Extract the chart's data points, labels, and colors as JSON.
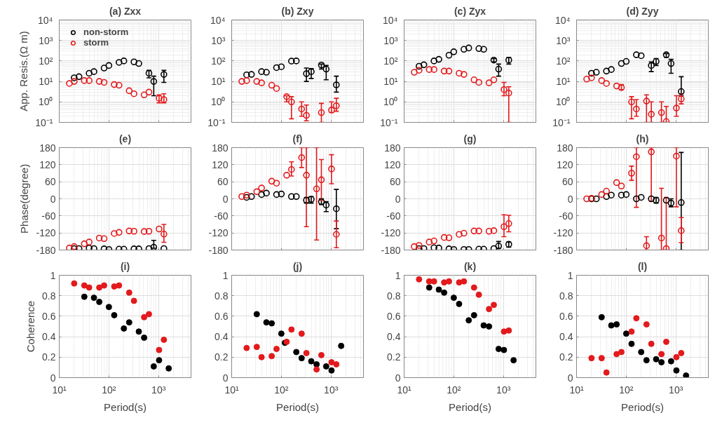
{
  "chart_data": [
    {
      "type": "scatter",
      "title": "(a) Zxx",
      "ylabel": "App. Resis.(Ω m)",
      "log": "xy",
      "grid": true,
      "marker": "circle",
      "legend": "top left",
      "tick_labels": "y",
      "xlim": [
        10,
        4500
      ],
      "ylim": [
        0.1,
        10000
      ],
      "xticks": [
        10,
        100,
        1000
      ],
      "yticks": [
        {
          "value": 0.1,
          "label": "10⁻¹"
        },
        {
          "value": 1,
          "label": "10⁰"
        },
        {
          "value": 10,
          "label": "10¹"
        },
        {
          "value": 100,
          "label": "10²"
        },
        {
          "value": 1000,
          "label": "10³"
        },
        {
          "value": 10000,
          "label": "10⁴"
        }
      ],
      "series": [
        {
          "name": "non-storm",
          "color": "#000000",
          "x": [
            20,
            25,
            40,
            50,
            80,
            100,
            160,
            200,
            320,
            400,
            640,
            800,
            1280
          ],
          "values": [
            15,
            17,
            25,
            30,
            45,
            60,
            85,
            100,
            90,
            75,
            25,
            10,
            22
          ],
          "errors": [
            null,
            null,
            null,
            null,
            null,
            null,
            null,
            null,
            null,
            null,
            [
              15,
              35
            ],
            [
              2,
              18
            ],
            [
              9,
              35
            ]
          ]
        },
        {
          "name": "storm",
          "color": "#e31a1c",
          "x": [
            16,
            20,
            32,
            40,
            64,
            80,
            128,
            160,
            256,
            320,
            512,
            640,
            1024,
            1280
          ],
          "values": [
            8,
            10,
            11,
            11,
            10,
            9,
            7,
            6.5,
            3.5,
            2.5,
            2.2,
            3,
            1.5,
            1.3
          ],
          "errors": [
            null,
            null,
            null,
            null,
            null,
            null,
            null,
            null,
            null,
            null,
            null,
            null,
            [
              0.9,
              2.2
            ],
            [
              0.9,
              2.5
            ]
          ]
        }
      ]
    },
    {
      "type": "scatter",
      "title": "(b) Zxy",
      "log": "xy",
      "grid": true,
      "marker": "circle",
      "tick_labels": "y",
      "xlim": [
        10,
        4500
      ],
      "ylim": [
        0.1,
        10000
      ],
      "xticks": [
        10,
        100,
        1000
      ],
      "yticks": [
        {
          "value": 0.1,
          "label": "10⁻¹"
        },
        {
          "value": 1,
          "label": "10⁰"
        },
        {
          "value": 10,
          "label": "10¹"
        },
        {
          "value": 100,
          "label": "10²"
        },
        {
          "value": 1000,
          "label": "10³"
        },
        {
          "value": 10000,
          "label": "10⁴"
        }
      ],
      "series": [
        {
          "color": "#000000",
          "x": [
            20,
            25,
            40,
            50,
            80,
            100,
            160,
            200,
            320,
            400,
            640,
            800,
            1280
          ],
          "values": [
            21,
            22,
            30,
            28,
            47,
            52,
            98,
            100,
            24,
            30,
            63,
            40,
            6.8
          ],
          "errors": [
            null,
            null,
            null,
            null,
            null,
            null,
            null,
            null,
            [
              10,
              45
            ],
            [
              14,
              42
            ],
            [
              40,
              70
            ],
            [
              12,
              60
            ],
            [
              3,
              18
            ]
          ]
        },
        {
          "color": "#e31a1c",
          "x": [
            16,
            20,
            32,
            40,
            64,
            80,
            128,
            160,
            256,
            320,
            640,
            1024,
            1280
          ],
          "values": [
            10,
            11,
            10,
            8.5,
            6.5,
            4.5,
            1.8,
            1.0,
            0.45,
            0.22,
            0.3,
            0.4,
            0.65
          ],
          "errors": [
            null,
            null,
            null,
            null,
            null,
            null,
            [
              1.0,
              2.0
            ],
            [
              0.15,
              1.8
            ],
            [
              0.2,
              1.0
            ],
            [
              0.12,
              0.7
            ],
            [
              0.1,
              0.85
            ],
            [
              0.3,
              1.0
            ],
            [
              0.35,
              1.5
            ]
          ]
        }
      ]
    },
    {
      "type": "scatter",
      "title": "(c) Zyx",
      "log": "xy",
      "grid": true,
      "marker": "circle",
      "tick_labels": "y",
      "xlim": [
        10,
        4500
      ],
      "ylim": [
        0.1,
        10000
      ],
      "xticks": [
        10,
        100,
        1000
      ],
      "yticks": [
        {
          "value": 0.1,
          "label": "10⁻¹"
        },
        {
          "value": 1,
          "label": "10⁰"
        },
        {
          "value": 10,
          "label": "10¹"
        },
        {
          "value": 100,
          "label": "10²"
        },
        {
          "value": 1000,
          "label": "10³"
        },
        {
          "value": 10000,
          "label": "10⁴"
        }
      ],
      "series": [
        {
          "color": "#000000",
          "x": [
            20,
            25,
            40,
            50,
            80,
            100,
            160,
            200,
            320,
            400,
            640,
            800,
            1280
          ],
          "values": [
            55,
            65,
            100,
            120,
            190,
            280,
            370,
            430,
            400,
            370,
            110,
            40,
            110
          ],
          "errors": [
            null,
            null,
            null,
            null,
            null,
            null,
            null,
            null,
            null,
            null,
            [
              90,
              130
            ],
            [
              18,
              70
            ],
            [
              70,
              150
            ]
          ]
        },
        {
          "color": "#e31a1c",
          "x": [
            16,
            20,
            32,
            40,
            64,
            80,
            128,
            160,
            256,
            320,
            512,
            640,
            1024,
            1280
          ],
          "values": [
            28,
            35,
            38,
            38,
            32,
            32,
            25,
            22,
            12,
            9,
            8.5,
            12,
            4,
            2.7
          ],
          "errors": [
            null,
            null,
            null,
            null,
            null,
            null,
            null,
            null,
            null,
            null,
            null,
            null,
            [
              2,
              9
            ],
            [
              0.1,
              5.5
            ]
          ]
        }
      ]
    },
    {
      "type": "scatter",
      "title": "(d) Zyy",
      "log": "xy",
      "grid": true,
      "marker": "circle",
      "tick_labels": "y",
      "xlim": [
        10,
        4500
      ],
      "ylim": [
        0.1,
        10000
      ],
      "xticks": [
        10,
        100,
        1000
      ],
      "yticks": [
        {
          "value": 0.1,
          "label": "10⁻¹"
        },
        {
          "value": 1,
          "label": "10⁰"
        },
        {
          "value": 10,
          "label": "10¹"
        },
        {
          "value": 100,
          "label": "10²"
        },
        {
          "value": 1000,
          "label": "10³"
        },
        {
          "value": 10000,
          "label": "10⁴"
        }
      ],
      "series": [
        {
          "color": "#000000",
          "x": [
            20,
            25,
            40,
            50,
            80,
            100,
            160,
            200,
            320,
            400,
            640,
            800,
            1280
          ],
          "values": [
            25,
            28,
            32,
            38,
            75,
            95,
            200,
            180,
            60,
            95,
            200,
            75,
            3.2
          ],
          "errors": [
            null,
            null,
            null,
            null,
            null,
            null,
            null,
            null,
            [
              30,
              90
            ],
            [
              60,
              130
            ],
            [
              150,
              230
            ],
            [
              25,
              120
            ],
            [
              2,
              17
            ]
          ]
        },
        {
          "color": "#e31a1c",
          "x": [
            16,
            20,
            32,
            40,
            64,
            80,
            128,
            160,
            256,
            320,
            512,
            640,
            1024,
            1280
          ],
          "values": [
            13,
            15,
            11,
            8,
            6,
            5,
            1.0,
            0.45,
            1.1,
            0.25,
            0.3,
            0.11,
            0.5,
            1.4
          ],
          "errors": [
            null,
            null,
            null,
            null,
            null,
            [
              4,
              7
            ],
            [
              0.15,
              1.8
            ],
            [
              0.2,
              1.3
            ],
            [
              0.1,
              2.2
            ],
            [
              0.1,
              1.0
            ],
            [
              0.1,
              1.0
            ],
            [
              0.1,
              0.6
            ],
            [
              0.2,
              2.0
            ],
            [
              0.8,
              2.5
            ]
          ]
        }
      ]
    },
    {
      "type": "scatter",
      "title": "(e)",
      "ylabel": "Phase(degree)",
      "log": "x",
      "grid": true,
      "marker": "circle",
      "tick_labels": "y",
      "xlim": [
        10,
        4500
      ],
      "ylim": [
        -180,
        180
      ],
      "xticks": [
        10,
        100,
        1000
      ],
      "yticks": [
        -180,
        -120,
        -60,
        0,
        60,
        120,
        180
      ],
      "series": [
        {
          "color": "#000000",
          "x": [
            20,
            25,
            40,
            50,
            80,
            100,
            160,
            200,
            320,
            400,
            640,
            800,
            1280
          ],
          "values": [
            -175,
            -175,
            -173,
            -175,
            -176,
            -178,
            -177,
            -177,
            -176,
            -176,
            -175,
            -170,
            -175
          ],
          "errors": [
            null,
            null,
            null,
            null,
            null,
            null,
            null,
            null,
            null,
            null,
            null,
            [
              -174,
              -146
            ],
            null
          ]
        },
        {
          "color": "#e31a1c",
          "x": [
            16,
            20,
            32,
            40,
            64,
            80,
            128,
            160,
            256,
            320,
            512,
            640,
            1024,
            1280
          ],
          "values": [
            -173,
            -168,
            -158,
            -152,
            -138,
            -140,
            -122,
            -118,
            -113,
            -114,
            -115,
            -114,
            -106,
            -124
          ],
          "errors": [
            null,
            null,
            null,
            null,
            null,
            null,
            null,
            null,
            null,
            null,
            null,
            null,
            null,
            [
              -153,
              -90
            ]
          ]
        }
      ]
    },
    {
      "type": "scatter",
      "title": "(f)",
      "log": "x",
      "grid": true,
      "marker": "circle",
      "tick_labels": "y",
      "xlim": [
        10,
        4500
      ],
      "ylim": [
        -180,
        180
      ],
      "xticks": [
        10,
        100,
        1000
      ],
      "yticks": [
        -180,
        -120,
        -60,
        0,
        60,
        120,
        180
      ],
      "series": [
        {
          "color": "#000000",
          "x": [
            20,
            25,
            40,
            50,
            80,
            100,
            160,
            200,
            320,
            400,
            640,
            800,
            1280
          ],
          "values": [
            5,
            8,
            15,
            20,
            15,
            17,
            8,
            8,
            -5,
            -2,
            -10,
            -22,
            -35
          ],
          "errors": [
            null,
            null,
            null,
            null,
            null,
            null,
            null,
            null,
            [
              -15,
              5
            ],
            [
              -15,
              8
            ],
            [
              -20,
              0
            ],
            [
              -45,
              -10
            ],
            [
              -105,
              33
            ]
          ]
        },
        {
          "color": "#e31a1c",
          "x": [
            16,
            20,
            32,
            40,
            64,
            80,
            128,
            160,
            256,
            320,
            512,
            640,
            1024,
            1280
          ],
          "values": [
            8,
            13,
            25,
            38,
            62,
            55,
            83,
            103,
            145,
            83,
            35,
            67,
            105,
            -125
          ],
          "errors": [
            null,
            null,
            null,
            null,
            null,
            null,
            null,
            [
              80,
              130
            ],
            [
              110,
              180
            ],
            [
              -98,
              180
            ],
            [
              -145,
              180
            ],
            [
              -5,
              138
            ],
            [
              53,
              155
            ],
            [
              -172,
              -78
            ]
          ]
        }
      ]
    },
    {
      "type": "scatter",
      "title": "(g)",
      "log": "x",
      "grid": true,
      "marker": "circle",
      "tick_labels": "y",
      "xlim": [
        10,
        4500
      ],
      "ylim": [
        -180,
        180
      ],
      "xticks": [
        10,
        100,
        1000
      ],
      "yticks": [
        -180,
        -120,
        -60,
        0,
        60,
        120,
        180
      ],
      "series": [
        {
          "color": "#000000",
          "x": [
            20,
            25,
            40,
            50,
            80,
            100,
            160,
            200,
            320,
            400,
            640,
            800,
            1280
          ],
          "values": [
            -175,
            -175,
            -172,
            -173,
            -176,
            -178,
            -178,
            -178,
            -177,
            -177,
            -175,
            -166,
            -160
          ],
          "errors": [
            null,
            null,
            null,
            null,
            null,
            null,
            null,
            null,
            null,
            null,
            null,
            [
              -174,
              -150
            ],
            [
              -170,
              -152
            ]
          ]
        },
        {
          "color": "#e31a1c",
          "x": [
            16,
            20,
            32,
            40,
            64,
            80,
            128,
            160,
            256,
            320,
            512,
            640,
            1024,
            1280
          ],
          "values": [
            -168,
            -164,
            -152,
            -148,
            -136,
            -137,
            -125,
            -121,
            -113,
            -113,
            -114,
            -112,
            -98,
            -87
          ],
          "errors": [
            null,
            null,
            null,
            null,
            null,
            null,
            null,
            null,
            null,
            null,
            null,
            null,
            [
              -133,
              -56
            ],
            [
              -116,
              -58
            ]
          ]
        }
      ]
    },
    {
      "type": "scatter",
      "title": "(h)",
      "log": "x",
      "grid": true,
      "marker": "circle",
      "tick_labels": "y",
      "xlim": [
        10,
        4500
      ],
      "ylim": [
        -180,
        180
      ],
      "xticks": [
        10,
        100,
        1000
      ],
      "yticks": [
        -180,
        -120,
        -60,
        0,
        60,
        120,
        180
      ],
      "series": [
        {
          "color": "#000000",
          "x": [
            20,
            25,
            40,
            50,
            80,
            100,
            160,
            200,
            320,
            400,
            640,
            800,
            1280
          ],
          "values": [
            0,
            0,
            8,
            13,
            13,
            15,
            0,
            5,
            0,
            -5,
            -5,
            -15,
            -13
          ],
          "errors": [
            null,
            null,
            null,
            null,
            null,
            null,
            null,
            null,
            null,
            [
              -15,
              5
            ],
            null,
            [
              -28,
              0
            ],
            [
              -180,
              163
            ]
          ]
        },
        {
          "color": "#e31a1c",
          "x": [
            16,
            20,
            32,
            40,
            64,
            80,
            128,
            160,
            256,
            320,
            512,
            640,
            1024,
            1280
          ],
          "values": [
            0,
            2,
            15,
            27,
            57,
            45,
            90,
            148,
            -165,
            165,
            -138,
            -175,
            150,
            -112
          ],
          "errors": [
            null,
            null,
            null,
            null,
            null,
            null,
            [
              65,
              115
            ],
            [
              -30,
              180
            ],
            [
              -180,
              -133
            ],
            [
              -8,
              180
            ],
            [
              -180,
              37
            ],
            [
              -180,
              5
            ],
            [
              -28,
              180
            ],
            [
              -154,
              -66
            ]
          ]
        }
      ]
    },
    {
      "type": "scatter",
      "title": "(i)",
      "ylabel": "Coherence",
      "xlabel": "Period(s)",
      "log": "x",
      "grid": true,
      "marker": "circle",
      "xlim": [
        10,
        4500
      ],
      "ylim": [
        0,
        1
      ],
      "xticks": [
        {
          "value": 10,
          "label": "10¹"
        },
        {
          "value": 100,
          "label": "10²"
        },
        {
          "value": 1000,
          "label": "10³"
        }
      ],
      "yticks": [
        0,
        0.2,
        0.4,
        0.6,
        0.8,
        1
      ],
      "series": [
        {
          "color": "#000000",
          "x": [
            32,
            50,
            64,
            100,
            128,
            200,
            256,
            400,
            512,
            800,
            1024,
            1600
          ],
          "values": [
            0.79,
            0.78,
            0.74,
            0.69,
            0.61,
            0.48,
            0.54,
            0.45,
            0.39,
            0.11,
            0.17,
            0.09
          ]
        },
        {
          "color": "#e31a1c",
          "x": [
            20,
            32,
            40,
            64,
            80,
            128,
            160,
            256,
            320,
            512,
            640,
            1024,
            1280
          ],
          "values": [
            0.92,
            0.9,
            0.88,
            0.88,
            0.9,
            0.89,
            0.9,
            0.83,
            0.75,
            0.59,
            0.62,
            0.27,
            0.37
          ]
        }
      ]
    },
    {
      "type": "scatter",
      "title": "(j)",
      "xlabel": "Period(s)",
      "log": "x",
      "grid": true,
      "marker": "circle",
      "xlim": [
        10,
        4500
      ],
      "ylim": [
        0,
        1
      ],
      "xticks": [
        {
          "value": 10,
          "label": "10¹"
        },
        {
          "value": 100,
          "label": "10²"
        },
        {
          "value": 1000,
          "label": "10³"
        }
      ],
      "yticks": [
        0,
        0.2,
        0.4,
        0.6,
        0.8,
        1
      ],
      "series": [
        {
          "color": "#000000",
          "x": [
            32,
            50,
            64,
            100,
            118,
            200,
            256,
            400,
            512,
            800,
            1024,
            1600
          ],
          "values": [
            0.62,
            0.54,
            0.53,
            0.43,
            0.34,
            0.25,
            0.19,
            0.16,
            0.13,
            0.11,
            0.07,
            0.31
          ]
        },
        {
          "color": "#e31a1c",
          "x": [
            20,
            32,
            40,
            64,
            80,
            128,
            160,
            256,
            320,
            512,
            640,
            1024,
            1280
          ],
          "values": [
            0.29,
            0.3,
            0.2,
            0.21,
            0.28,
            0.35,
            0.47,
            0.43,
            0.24,
            0.08,
            0.22,
            0.15,
            0.13
          ]
        }
      ]
    },
    {
      "type": "scatter",
      "title": "(k)",
      "xlabel": "Period(s)",
      "log": "x",
      "grid": true,
      "marker": "circle",
      "xlim": [
        10,
        4500
      ],
      "ylim": [
        0,
        1
      ],
      "xticks": [
        {
          "value": 10,
          "label": "10¹"
        },
        {
          "value": 100,
          "label": "10²"
        },
        {
          "value": 1000,
          "label": "10³"
        }
      ],
      "yticks": [
        0,
        0.2,
        0.4,
        0.6,
        0.8,
        1
      ],
      "series": [
        {
          "color": "#000000",
          "x": [
            32,
            50,
            64,
            100,
            128,
            200,
            256,
            400,
            512,
            800,
            1024,
            1600
          ],
          "values": [
            0.88,
            0.86,
            0.83,
            0.78,
            0.72,
            0.56,
            0.61,
            0.51,
            0.5,
            0.28,
            0.27,
            0.17
          ]
        },
        {
          "color": "#e31a1c",
          "x": [
            20,
            32,
            40,
            64,
            80,
            128,
            160,
            256,
            320,
            512,
            640,
            1024,
            1280
          ],
          "values": [
            0.96,
            0.94,
            0.94,
            0.93,
            0.94,
            0.93,
            0.94,
            0.88,
            0.81,
            0.67,
            0.71,
            0.45,
            0.46
          ]
        }
      ]
    },
    {
      "type": "scatter",
      "title": "(l)",
      "xlabel": "Period(s)",
      "log": "x",
      "grid": true,
      "marker": "circle",
      "xlim": [
        10,
        4500
      ],
      "ylim": [
        0,
        1
      ],
      "xticks": [
        {
          "value": 10,
          "label": "10¹"
        },
        {
          "value": 100,
          "label": "10²"
        },
        {
          "value": 1000,
          "label": "10³"
        }
      ],
      "yticks": [
        0,
        0.2,
        0.4,
        0.6,
        0.8,
        1
      ],
      "series": [
        {
          "color": "#000000",
          "x": [
            32,
            50,
            64,
            100,
            128,
            200,
            256,
            400,
            512,
            800,
            1024,
            1600
          ],
          "values": [
            0.59,
            0.51,
            0.52,
            0.43,
            0.33,
            0.25,
            0.17,
            0.18,
            0.15,
            0.16,
            0.07,
            0.02
          ]
        },
        {
          "color": "#e31a1c",
          "x": [
            20,
            32,
            40,
            64,
            80,
            128,
            160,
            256,
            320,
            512,
            640,
            1024,
            1280
          ],
          "values": [
            0.19,
            0.19,
            0.05,
            0.23,
            0.25,
            0.45,
            0.58,
            0.52,
            0.33,
            0.23,
            0.35,
            0.2,
            0.24
          ]
        }
      ]
    }
  ]
}
